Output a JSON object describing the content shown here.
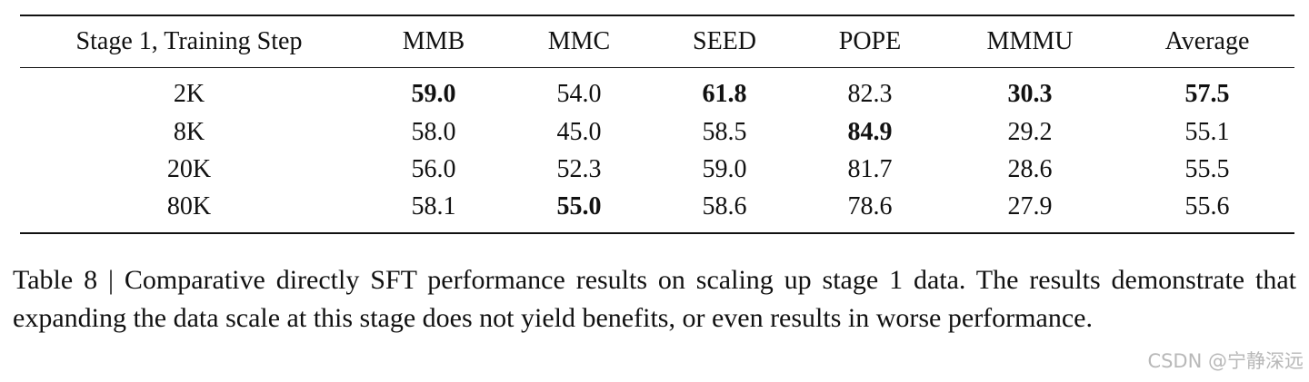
{
  "table": {
    "header": [
      "Stage 1, Training Step",
      "MMB",
      "MMC",
      "SEED",
      "POPE",
      "MMMU",
      "Average"
    ],
    "rows": [
      [
        "2K",
        "59.0",
        "54.0",
        "61.8",
        "82.3",
        "30.3",
        "57.5"
      ],
      [
        "8K",
        "58.0",
        "45.0",
        "58.5",
        "84.9",
        "29.2",
        "55.1"
      ],
      [
        "20K",
        "56.0",
        "52.3",
        "59.0",
        "81.7",
        "28.6",
        "55.5"
      ],
      [
        "80K",
        "58.1",
        "55.0",
        "58.6",
        "78.6",
        "27.9",
        "55.6"
      ]
    ],
    "bold": [
      [
        false,
        true,
        false,
        true,
        false,
        true,
        true
      ],
      [
        false,
        false,
        false,
        false,
        true,
        false,
        false
      ],
      [
        false,
        false,
        false,
        false,
        false,
        false,
        false
      ],
      [
        false,
        false,
        true,
        false,
        false,
        false,
        false
      ]
    ]
  },
  "caption": "Table 8 | Comparative directly SFT performance results on scaling up stage 1 data. The results demonstrate that expanding the data scale at this stage does not yield benefits, or even results in worse performance.",
  "watermark": "CSDN @宁静深远"
}
